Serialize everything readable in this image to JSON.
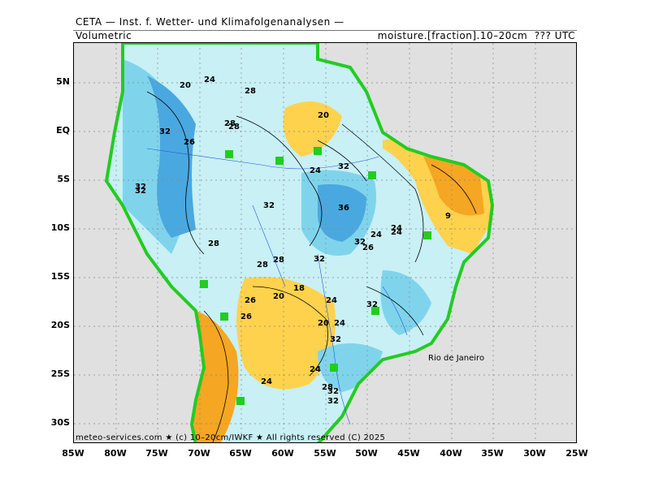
{
  "header": {
    "title": "CETA — Inst. f. Wetter- und Klimafolgenanalysen —",
    "subtitle_left": "Volumetric",
    "subtitle_right": "moisture.[fraction].10–20cm  ??? UTC"
  },
  "map": {
    "lat_labels": [
      "5N",
      "EQ",
      "5S",
      "10S",
      "15S",
      "20S",
      "25S",
      "30S"
    ],
    "lon_labels": [
      "85W",
      "80W",
      "75W",
      "70W",
      "65W",
      "60W",
      "55W",
      "50W",
      "45W",
      "40W",
      "35W",
      "30W",
      "25W"
    ],
    "contour_labels": [
      "20",
      "24",
      "28",
      "32",
      "28",
      "26",
      "32",
      "32",
      "32",
      "28",
      "24",
      "32",
      "36",
      "28",
      "24",
      "32",
      "28",
      "26",
      "32",
      "28",
      "26",
      "20",
      "18",
      "24",
      "20",
      "24",
      "32",
      "26",
      "24",
      "28",
      "24",
      "32",
      "24",
      "32",
      "32",
      "20",
      "9",
      "24"
    ],
    "city": "Rio de Janeiro",
    "colors": {
      "ocean": "#e0e0e0",
      "dry": "#f5a623",
      "dry_mid": "#ffd24d",
      "mid": "#fff3b0",
      "moist": "#c8f0f5",
      "wet": "#7fd4ec",
      "very_wet": "#4aa8e0",
      "coast": "#22cc22"
    }
  },
  "footer": "meteo-services.com ★ (c) 10–20cm/IWKF ★ All rights reserved (C) 2025"
}
